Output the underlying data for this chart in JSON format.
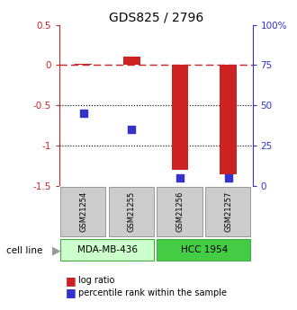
{
  "title": "GDS825 / 2796",
  "samples": [
    "GSM21254",
    "GSM21255",
    "GSM21256",
    "GSM21257"
  ],
  "log_ratio": [
    0.02,
    0.1,
    -1.3,
    -1.35
  ],
  "percentile_rank": [
    45,
    35,
    5,
    5
  ],
  "left_ylim": [
    -1.5,
    0.5
  ],
  "right_ylim": [
    0,
    100
  ],
  "left_yticks": [
    -1.5,
    -1.0,
    -0.5,
    0.0,
    0.5
  ],
  "right_yticks": [
    0,
    25,
    50,
    75,
    100
  ],
  "right_yticklabels": [
    "0",
    "25",
    "50",
    "75",
    "100%"
  ],
  "bar_color": "#cc2222",
  "dot_color": "#3333cc",
  "cell_lines": [
    "MDA-MB-436",
    "HCC 1954"
  ],
  "cell_line_colors": [
    "#ccffcc",
    "#44cc44"
  ],
  "sample_box_color": "#cccccc",
  "background_color": "#ffffff",
  "bar_width": 0.35,
  "dot_size": 40,
  "left_yticklabels": [
    "-1.5",
    "-1",
    "-0.5",
    "0",
    "0.5"
  ]
}
